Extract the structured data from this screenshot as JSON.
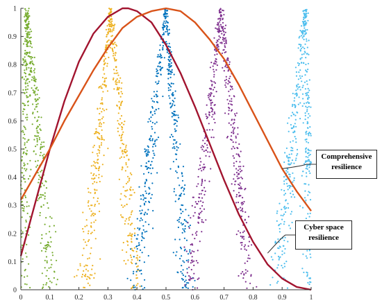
{
  "chart_data": {
    "type": "scatter",
    "title": "",
    "xlabel": "",
    "ylabel": "",
    "xlim": [
      0,
      1
    ],
    "ylim": [
      0,
      1
    ],
    "xticks": [
      "0",
      "0.1",
      "0.2",
      "0.3",
      "0.4",
      "0.5",
      "0.6",
      "0.7",
      "0.8",
      "0.9",
      "1"
    ],
    "yticks": [
      "0",
      "0.1",
      "0.2",
      "0.3",
      "0.4",
      "0.5",
      "0.6",
      "0.7",
      "0.8",
      "0.9",
      "1"
    ],
    "grid": false,
    "legend": "none",
    "series": [
      {
        "kind": "scatter-peak",
        "color": "#77AC30",
        "peak_x": 0.02,
        "peak_y": 1.0,
        "half_width_low": 0.02,
        "half_width_high": 0.1
      },
      {
        "kind": "scatter-peak",
        "color": "#EDB120",
        "peak_x": 0.31,
        "peak_y": 1.0,
        "half_width_low": 0.1,
        "half_width_high": 0.1
      },
      {
        "kind": "scatter-peak",
        "color": "#0072BD",
        "peak_x": 0.5,
        "peak_y": 1.0,
        "half_width_low": 0.12,
        "half_width_high": 0.08
      },
      {
        "kind": "scatter-peak",
        "color": "#7E2F8E",
        "peak_x": 0.69,
        "peak_y": 1.0,
        "half_width_low": 0.12,
        "half_width_high": 0.11
      },
      {
        "kind": "scatter-peak",
        "color": "#4DBEEE",
        "peak_x": 0.98,
        "peak_y": 1.0,
        "half_width_low": 0.11,
        "half_width_high": 0.02
      },
      {
        "kind": "curve",
        "color": "#A2142F",
        "x": [
          0.0,
          0.05,
          0.1,
          0.15,
          0.2,
          0.25,
          0.3,
          0.35,
          0.37,
          0.4,
          0.45,
          0.5,
          0.55,
          0.6,
          0.65,
          0.7,
          0.75,
          0.8,
          0.85,
          0.9,
          0.95,
          1.0
        ],
        "y": [
          0.12,
          0.31,
          0.5,
          0.67,
          0.81,
          0.91,
          0.97,
          1.0,
          1.0,
          0.99,
          0.95,
          0.87,
          0.77,
          0.65,
          0.52,
          0.39,
          0.27,
          0.17,
          0.09,
          0.04,
          0.01,
          0.0
        ]
      },
      {
        "kind": "curve",
        "color": "#D95319",
        "x": [
          0.0,
          0.05,
          0.1,
          0.15,
          0.2,
          0.25,
          0.3,
          0.35,
          0.4,
          0.45,
          0.5,
          0.55,
          0.6,
          0.65,
          0.7,
          0.75,
          0.8,
          0.85,
          0.9,
          0.95,
          1.0
        ],
        "y": [
          0.32,
          0.41,
          0.5,
          0.6,
          0.69,
          0.78,
          0.86,
          0.93,
          0.97,
          0.99,
          1.0,
          0.99,
          0.95,
          0.89,
          0.82,
          0.73,
          0.63,
          0.53,
          0.43,
          0.35,
          0.28
        ]
      }
    ],
    "annotations": [
      {
        "lines": [
          "Comprehensive",
          "resilience"
        ],
        "points_to": [
          0.9,
          0.43
        ]
      },
      {
        "lines": [
          "Cyber space",
          "resilience"
        ],
        "points_to": [
          0.85,
          0.13
        ]
      }
    ]
  }
}
